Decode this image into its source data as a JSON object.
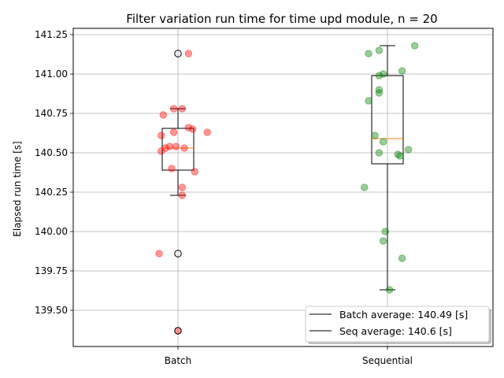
{
  "chart_data": {
    "type": "box",
    "title": "Filter variation run time for time upd module, n = 20",
    "xlabel": "",
    "ylabel": "Elapsed run time [s]",
    "categories": [
      "Batch",
      "Sequential"
    ],
    "ylim": [
      139.27,
      141.29
    ],
    "yticks": [
      139.5,
      139.75,
      140.0,
      140.25,
      140.5,
      140.75,
      141.0,
      141.25
    ],
    "ytick_labels": [
      "139.50",
      "139.75",
      "140.00",
      "140.25",
      "140.50",
      "140.75",
      "141.00",
      "141.25"
    ],
    "grid": true,
    "legend": {
      "placement": "lower-right",
      "entries": [
        "Batch average: 140.49 [s]",
        "Seq average: 140.6 [s]"
      ]
    },
    "boxes": [
      {
        "category": "Batch",
        "q1": 140.39,
        "median": 140.53,
        "q3": 140.655,
        "whisker_low": 140.23,
        "whisker_high": 140.78,
        "outliers": [
          141.13,
          139.86,
          139.37
        ]
      },
      {
        "category": "Sequential",
        "q1": 140.43,
        "median": 140.59,
        "q3": 140.99,
        "whisker_low": 139.63,
        "whisker_high": 141.18,
        "outliers": []
      }
    ],
    "series": [
      {
        "category": "Batch",
        "color": "#ff0000",
        "points": [
          {
            "jitter": -0.09,
            "y": 139.86
          },
          {
            "jitter": -0.08,
            "y": 140.51
          },
          {
            "jitter": -0.08,
            "y": 140.61
          },
          {
            "jitter": -0.07,
            "y": 140.74
          },
          {
            "jitter": -0.06,
            "y": 140.53
          },
          {
            "jitter": -0.04,
            "y": 140.54
          },
          {
            "jitter": -0.03,
            "y": 140.4
          },
          {
            "jitter": -0.02,
            "y": 140.63
          },
          {
            "jitter": -0.02,
            "y": 140.78
          },
          {
            "jitter": -0.01,
            "y": 140.54
          },
          {
            "jitter": 0.0,
            "y": 139.37
          },
          {
            "jitter": 0.02,
            "y": 140.28
          },
          {
            "jitter": 0.02,
            "y": 140.23
          },
          {
            "jitter": 0.02,
            "y": 140.78
          },
          {
            "jitter": 0.03,
            "y": 140.53
          },
          {
            "jitter": 0.05,
            "y": 140.66
          },
          {
            "jitter": 0.05,
            "y": 141.13
          },
          {
            "jitter": 0.07,
            "y": 140.65
          },
          {
            "jitter": 0.08,
            "y": 140.38
          },
          {
            "jitter": 0.14,
            "y": 140.63
          }
        ]
      },
      {
        "category": "Sequential",
        "color": "#008000",
        "points": [
          {
            "jitter": -0.11,
            "y": 140.28
          },
          {
            "jitter": -0.09,
            "y": 140.83
          },
          {
            "jitter": -0.09,
            "y": 141.13
          },
          {
            "jitter": -0.06,
            "y": 140.61
          },
          {
            "jitter": -0.04,
            "y": 140.5
          },
          {
            "jitter": -0.04,
            "y": 140.88
          },
          {
            "jitter": -0.04,
            "y": 140.9
          },
          {
            "jitter": -0.04,
            "y": 140.99
          },
          {
            "jitter": -0.04,
            "y": 141.15
          },
          {
            "jitter": -0.02,
            "y": 140.57
          },
          {
            "jitter": -0.02,
            "y": 139.94
          },
          {
            "jitter": -0.02,
            "y": 141.0
          },
          {
            "jitter": -0.01,
            "y": 140.0
          },
          {
            "jitter": 0.01,
            "y": 139.63
          },
          {
            "jitter": 0.05,
            "y": 140.49
          },
          {
            "jitter": 0.06,
            "y": 140.48
          },
          {
            "jitter": 0.07,
            "y": 139.83
          },
          {
            "jitter": 0.07,
            "y": 141.02
          },
          {
            "jitter": 0.1,
            "y": 140.52
          },
          {
            "jitter": 0.13,
            "y": 141.18
          }
        ]
      }
    ]
  }
}
